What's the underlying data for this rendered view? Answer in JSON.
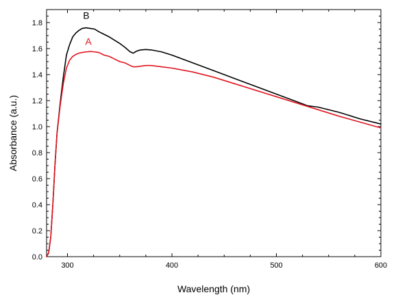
{
  "chart_data": {
    "type": "line",
    "title": "",
    "xlabel": "Wavelength (nm)",
    "ylabel": "Absorbance (a.u.)",
    "xlim": [
      280,
      600
    ],
    "ylim": [
      0.0,
      1.9
    ],
    "grid": false,
    "legend": "none",
    "x_ticks": [
      300,
      400,
      500,
      600
    ],
    "x_tick_labels": [
      "300",
      "400",
      "500",
      "600"
    ],
    "y_ticks": [
      0.0,
      0.2,
      0.4,
      0.6,
      0.8,
      1.0,
      1.2,
      1.4,
      1.6,
      1.8
    ],
    "y_tick_labels": [
      "0.0",
      "0.2",
      "0.4",
      "0.6",
      "0.8",
      "1.0",
      "1.2",
      "1.4",
      "1.6",
      "1.8"
    ],
    "series": [
      {
        "name": "B",
        "color": "#000000",
        "x": [
          280,
          282,
          284,
          286,
          288,
          290,
          293,
          296,
          299,
          302,
          305,
          308,
          311,
          314,
          318,
          322,
          326,
          330,
          335,
          340,
          345,
          350,
          355,
          360,
          363,
          366,
          370,
          375,
          380,
          390,
          400,
          420,
          440,
          460,
          480,
          500,
          520,
          530,
          540,
          560,
          580,
          600
        ],
        "y": [
          0.0,
          0.03,
          0.15,
          0.4,
          0.7,
          0.95,
          1.18,
          1.38,
          1.55,
          1.63,
          1.69,
          1.72,
          1.74,
          1.755,
          1.76,
          1.755,
          1.75,
          1.73,
          1.71,
          1.69,
          1.665,
          1.64,
          1.61,
          1.575,
          1.565,
          1.58,
          1.59,
          1.593,
          1.59,
          1.575,
          1.55,
          1.49,
          1.43,
          1.37,
          1.31,
          1.25,
          1.19,
          1.16,
          1.15,
          1.11,
          1.06,
          1.02
        ]
      },
      {
        "name": "A",
        "color": "#e0141e",
        "x": [
          280,
          282,
          284,
          286,
          288,
          290,
          293,
          296,
          299,
          302,
          305,
          308,
          311,
          314,
          318,
          322,
          326,
          330,
          335,
          340,
          345,
          350,
          355,
          360,
          363,
          366,
          370,
          375,
          380,
          390,
          400,
          420,
          440,
          460,
          480,
          500,
          520,
          540,
          560,
          580,
          600
        ],
        "y": [
          0.0,
          0.03,
          0.15,
          0.4,
          0.7,
          0.95,
          1.16,
          1.33,
          1.45,
          1.51,
          1.54,
          1.555,
          1.565,
          1.57,
          1.575,
          1.578,
          1.575,
          1.57,
          1.55,
          1.54,
          1.52,
          1.5,
          1.49,
          1.47,
          1.46,
          1.46,
          1.465,
          1.47,
          1.47,
          1.46,
          1.45,
          1.42,
          1.38,
          1.33,
          1.28,
          1.23,
          1.18,
          1.13,
          1.08,
          1.035,
          0.99
        ]
      }
    ],
    "annotations": [
      {
        "text": "B",
        "x": 318,
        "y": 1.83,
        "color": "#000000"
      },
      {
        "text": "A",
        "x": 320,
        "y": 1.63,
        "color": "#e0141e"
      }
    ]
  }
}
